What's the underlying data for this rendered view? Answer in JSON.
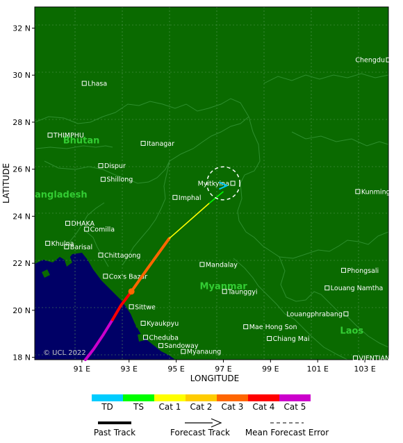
{
  "map": {
    "lon_range": [
      89,
      104
    ],
    "lat_range": [
      17.9,
      32.9
    ],
    "colors": {
      "land": "#0a6a00",
      "sea": "#000066",
      "border": "#2f8f2f",
      "grid": "#5a9a5a"
    },
    "x_ticks": [
      {
        "value": 91,
        "label": "91 E"
      },
      {
        "value": 93,
        "label": "93 E"
      },
      {
        "value": 95,
        "label": "95 E"
      },
      {
        "value": 97,
        "label": "97 E"
      },
      {
        "value": 99,
        "label": "99 E"
      },
      {
        "value": 101,
        "label": "101 E"
      },
      {
        "value": 103,
        "label": "103 E"
      }
    ],
    "y_ticks": [
      {
        "value": 18,
        "label": "18 N"
      },
      {
        "value": 20,
        "label": "20 N"
      },
      {
        "value": 22,
        "label": "22 N"
      },
      {
        "value": 24,
        "label": "24 N"
      },
      {
        "value": 26,
        "label": "26 N"
      },
      {
        "value": 28,
        "label": "28 N"
      },
      {
        "value": 30,
        "label": "30 N"
      },
      {
        "value": 32,
        "label": "32 N"
      }
    ],
    "xlabel": "LONGITUDE",
    "ylabel": "LATITUDE",
    "copyright": "© UCL 2022",
    "cities": [
      {
        "name": "Lhasa",
        "lon": 91.1,
        "lat": 29.65
      },
      {
        "name": "THIMPHU",
        "lon": 89.65,
        "lat": 27.45
      },
      {
        "name": "Itanagar",
        "lon": 93.6,
        "lat": 27.1
      },
      {
        "name": "Dispur",
        "lon": 91.8,
        "lat": 26.15
      },
      {
        "name": "Shillong",
        "lon": 91.9,
        "lat": 25.57
      },
      {
        "name": "Imphal",
        "lon": 94.95,
        "lat": 24.8
      },
      {
        "name": "DHAKA",
        "lon": 90.4,
        "lat": 23.7
      },
      {
        "name": "Comilla",
        "lon": 91.2,
        "lat": 23.45
      },
      {
        "name": "Khulna",
        "lon": 89.55,
        "lat": 22.85
      },
      {
        "name": "Barisal",
        "lon": 90.35,
        "lat": 22.7
      },
      {
        "name": "Chittagong",
        "lon": 91.8,
        "lat": 22.35
      },
      {
        "name": "Cox's Bazar",
        "lon": 92.0,
        "lat": 21.45
      },
      {
        "name": "Sittwe",
        "lon": 93.1,
        "lat": 20.15
      },
      {
        "name": "Kyaukpyu",
        "lon": 93.6,
        "lat": 19.45
      },
      {
        "name": "Cheduba",
        "lon": 93.7,
        "lat": 18.85
      },
      {
        "name": "Sandoway",
        "lon": 94.35,
        "lat": 18.5
      },
      {
        "name": "Myanaung",
        "lon": 95.3,
        "lat": 18.25
      },
      {
        "name": "Mandalay",
        "lon": 96.1,
        "lat": 21.95
      },
      {
        "name": "Taunggyi",
        "lon": 97.05,
        "lat": 20.8
      },
      {
        "name": "Myitkyina",
        "lon": 97.4,
        "lat": 25.4,
        "label_left": true
      },
      {
        "name": "Kunming",
        "lon": 102.7,
        "lat": 25.05
      },
      {
        "name": "Chengdu",
        "lon": 104.0,
        "lat": 30.65,
        "label_left": true
      },
      {
        "name": "Phongsali",
        "lon": 102.1,
        "lat": 21.7
      },
      {
        "name": "Louang Namtha",
        "lon": 101.4,
        "lat": 20.95
      },
      {
        "name": "Louangphrabang",
        "lon": 102.2,
        "lat": 19.85,
        "label_left": true
      },
      {
        "name": "Mae Hong Son",
        "lon": 97.95,
        "lat": 19.3
      },
      {
        "name": "Chiang Mai",
        "lon": 98.95,
        "lat": 18.8
      },
      {
        "name": "VIENTIANE",
        "lon": 102.6,
        "lat": 17.97
      }
    ],
    "countries": [
      {
        "name": "Bhutan",
        "lon": 90.2,
        "lat": 27.1
      },
      {
        "name": "angladesh",
        "lon": 89.0,
        "lat": 24.8
      },
      {
        "name": "Myanmar",
        "lon": 96.0,
        "lat": 20.9
      },
      {
        "name": "Laos",
        "lon": 101.95,
        "lat": 19.0
      }
    ]
  },
  "track": {
    "segments": [
      {
        "category": "Cat 5",
        "color": "#cc00cc",
        "points": [
          [
            91.15,
            17.9
          ],
          [
            91.5,
            18.35
          ],
          [
            91.9,
            18.95
          ],
          [
            92.3,
            19.6
          ]
        ]
      },
      {
        "category": "Cat 4",
        "color": "#ff0000",
        "points": [
          [
            92.3,
            19.6
          ],
          [
            92.65,
            20.2
          ],
          [
            93.1,
            20.8
          ]
        ]
      },
      {
        "category": "Cat 3",
        "color": "#ff6600",
        "points": [
          [
            93.1,
            20.8
          ],
          [
            93.8,
            21.8
          ],
          [
            94.7,
            23.05
          ]
        ]
      }
    ],
    "forecast": [
      {
        "category": "Cat 1",
        "color": "#ffff00",
        "points": [
          [
            94.7,
            23.05
          ],
          [
            96.4,
            24.55
          ]
        ]
      },
      {
        "category": "TS",
        "color": "#00ff00",
        "points": [
          [
            96.4,
            24.55
          ],
          [
            97.0,
            25.05
          ]
        ]
      }
    ],
    "current_position": {
      "lon": 93.1,
      "lat": 20.8,
      "color": "#ff6600"
    },
    "error_circle": {
      "lon": 97.0,
      "lat": 25.4,
      "radius_deg": 0.7
    },
    "end_marker": {
      "lon": 97.0,
      "lat": 25.3,
      "color": "#00ccff"
    }
  },
  "legend": {
    "categories": [
      {
        "label": "TD",
        "color": "#00ccff"
      },
      {
        "label": "TS",
        "color": "#00ff00"
      },
      {
        "label": "Cat 1",
        "color": "#ffff00"
      },
      {
        "label": "Cat 2",
        "color": "#ffcc00"
      },
      {
        "label": "Cat 3",
        "color": "#ff6600"
      },
      {
        "label": "Cat 4",
        "color": "#ff0000"
      },
      {
        "label": "Cat 5",
        "color": "#cc00cc"
      }
    ],
    "past_track": "Past Track",
    "forecast_track": "Forecast Track",
    "mean_error": "Mean Forecast Error"
  }
}
